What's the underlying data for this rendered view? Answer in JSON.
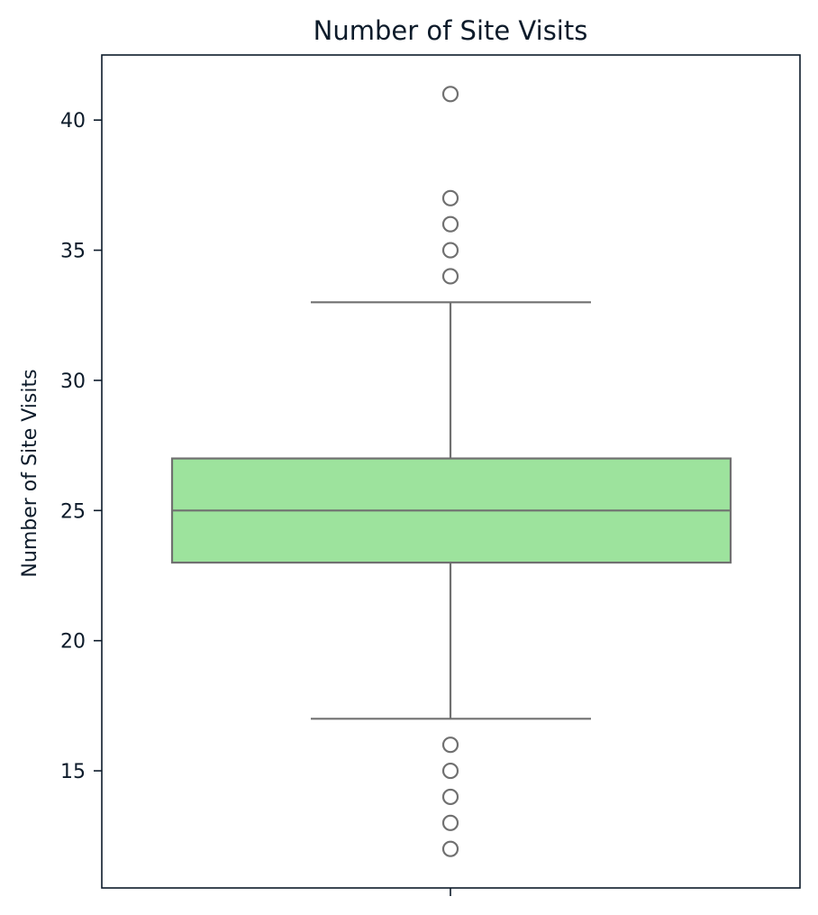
{
  "chart_data": {
    "type": "boxplot",
    "title": "Number of Site Visits",
    "xlabel": "",
    "ylabel": "Number of Site Visits",
    "ylim": [
      10.5,
      42.5
    ],
    "yticks": [
      15,
      20,
      25,
      30,
      35,
      40
    ],
    "grid": false,
    "box": {
      "q1": 23,
      "median": 25,
      "q3": 27,
      "whisker_low": 17,
      "whisker_high": 33,
      "fill": "#9de39d",
      "line": "#707070"
    },
    "outliers": [
      41,
      37,
      36,
      35,
      34,
      16,
      15,
      14,
      13,
      12
    ],
    "axis_color": "#0d1b2a"
  }
}
